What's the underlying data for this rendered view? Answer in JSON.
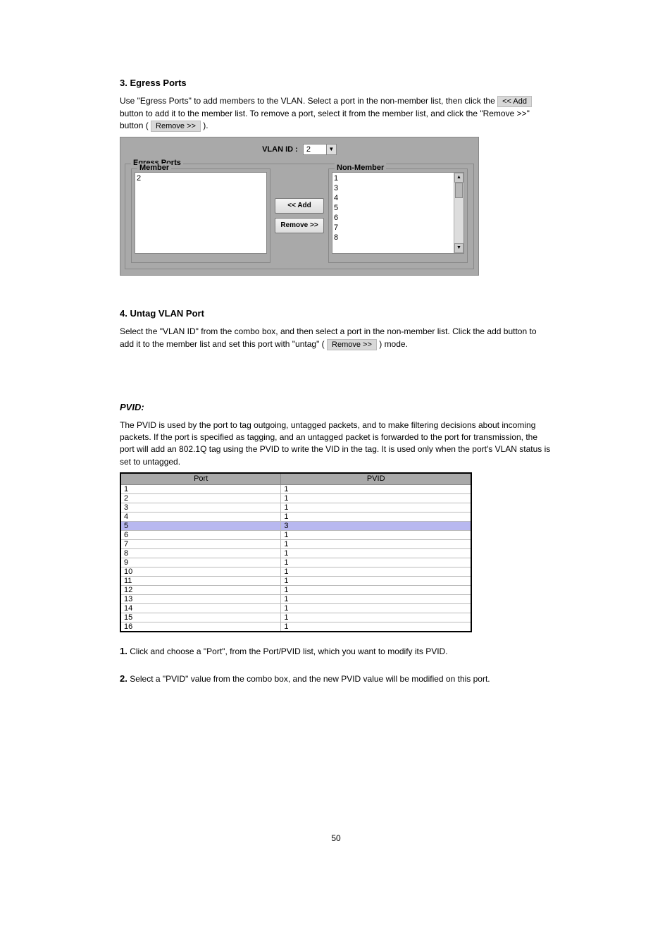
{
  "section_a": {
    "title": "3. Egress Ports",
    "p1_a": "Use \"Egress Ports\" to add members to the VLAN. Select a port in the non-member list, then click the ",
    "add_btn": "<< Add",
    "p1_b": " button to add it to the member list. To remove a port, select it from the member list, and click the \"Remove >>\" button (",
    "remove_btn": "Remove >>",
    "p1_c": ")."
  },
  "panel": {
    "vlan_id_label": "VLAN ID :",
    "vlan_id_value": "2",
    "egress_legend": "Egress Ports",
    "member_legend": "Member",
    "nonmember_legend": "Non-Member",
    "add_btn": "<< Add",
    "remove_btn": "Remove >>",
    "member_items": [
      "2"
    ],
    "nonmember_items": [
      "1",
      "3",
      "4",
      "5",
      "6",
      "7",
      "8"
    ]
  },
  "section_b": {
    "title": "4. Untag VLAN Port",
    "p_a": "Select the \"VLAN ID\" from the combo box, and then select a port in the non-member list. Click the add button to add it to the member list and set this port with \"untag\" (",
    "remove_btn": "Remove >>",
    "p_b": ") mode."
  },
  "section_c": {
    "pvid_title": "PVID:",
    "p1": "The PVID is used by the port to tag outgoing, untagged packets, and to make filtering decisions about incoming packets. If the port is specified as tagging, and an untagged packet is forwarded to the port for transmission, the port will add an 802.1Q tag using the PVID to write the VID in the tag. It is used only when the port's VLAN status is set to untagged."
  },
  "pvid_table": {
    "col_port": "Port",
    "col_pvid": "PVID",
    "rows": [
      {
        "port": "1",
        "pvid": "1",
        "hl": false
      },
      {
        "port": "2",
        "pvid": "1",
        "hl": false
      },
      {
        "port": "3",
        "pvid": "1",
        "hl": false
      },
      {
        "port": "4",
        "pvid": "1",
        "hl": false
      },
      {
        "port": "5",
        "pvid": "3",
        "hl": true
      },
      {
        "port": "6",
        "pvid": "1",
        "hl": false
      },
      {
        "port": "7",
        "pvid": "1",
        "hl": false
      },
      {
        "port": "8",
        "pvid": "1",
        "hl": false
      },
      {
        "port": "9",
        "pvid": "1",
        "hl": false
      },
      {
        "port": "10",
        "pvid": "1",
        "hl": false
      },
      {
        "port": "11",
        "pvid": "1",
        "hl": false
      },
      {
        "port": "12",
        "pvid": "1",
        "hl": false
      },
      {
        "port": "13",
        "pvid": "1",
        "hl": false
      },
      {
        "port": "14",
        "pvid": "1",
        "hl": false
      },
      {
        "port": "15",
        "pvid": "1",
        "hl": false
      },
      {
        "port": "16",
        "pvid": "1",
        "hl": false
      }
    ]
  },
  "section_d": {
    "num1": "1.",
    "p1": "Click and choose a \"Port\", from the Port/PVID list, which you want to modify its PVID.",
    "num2": "2.",
    "p2": "Select a \"PVID\" value from the combo box, and the new PVID value will be modified on this port."
  },
  "page_number": "50"
}
